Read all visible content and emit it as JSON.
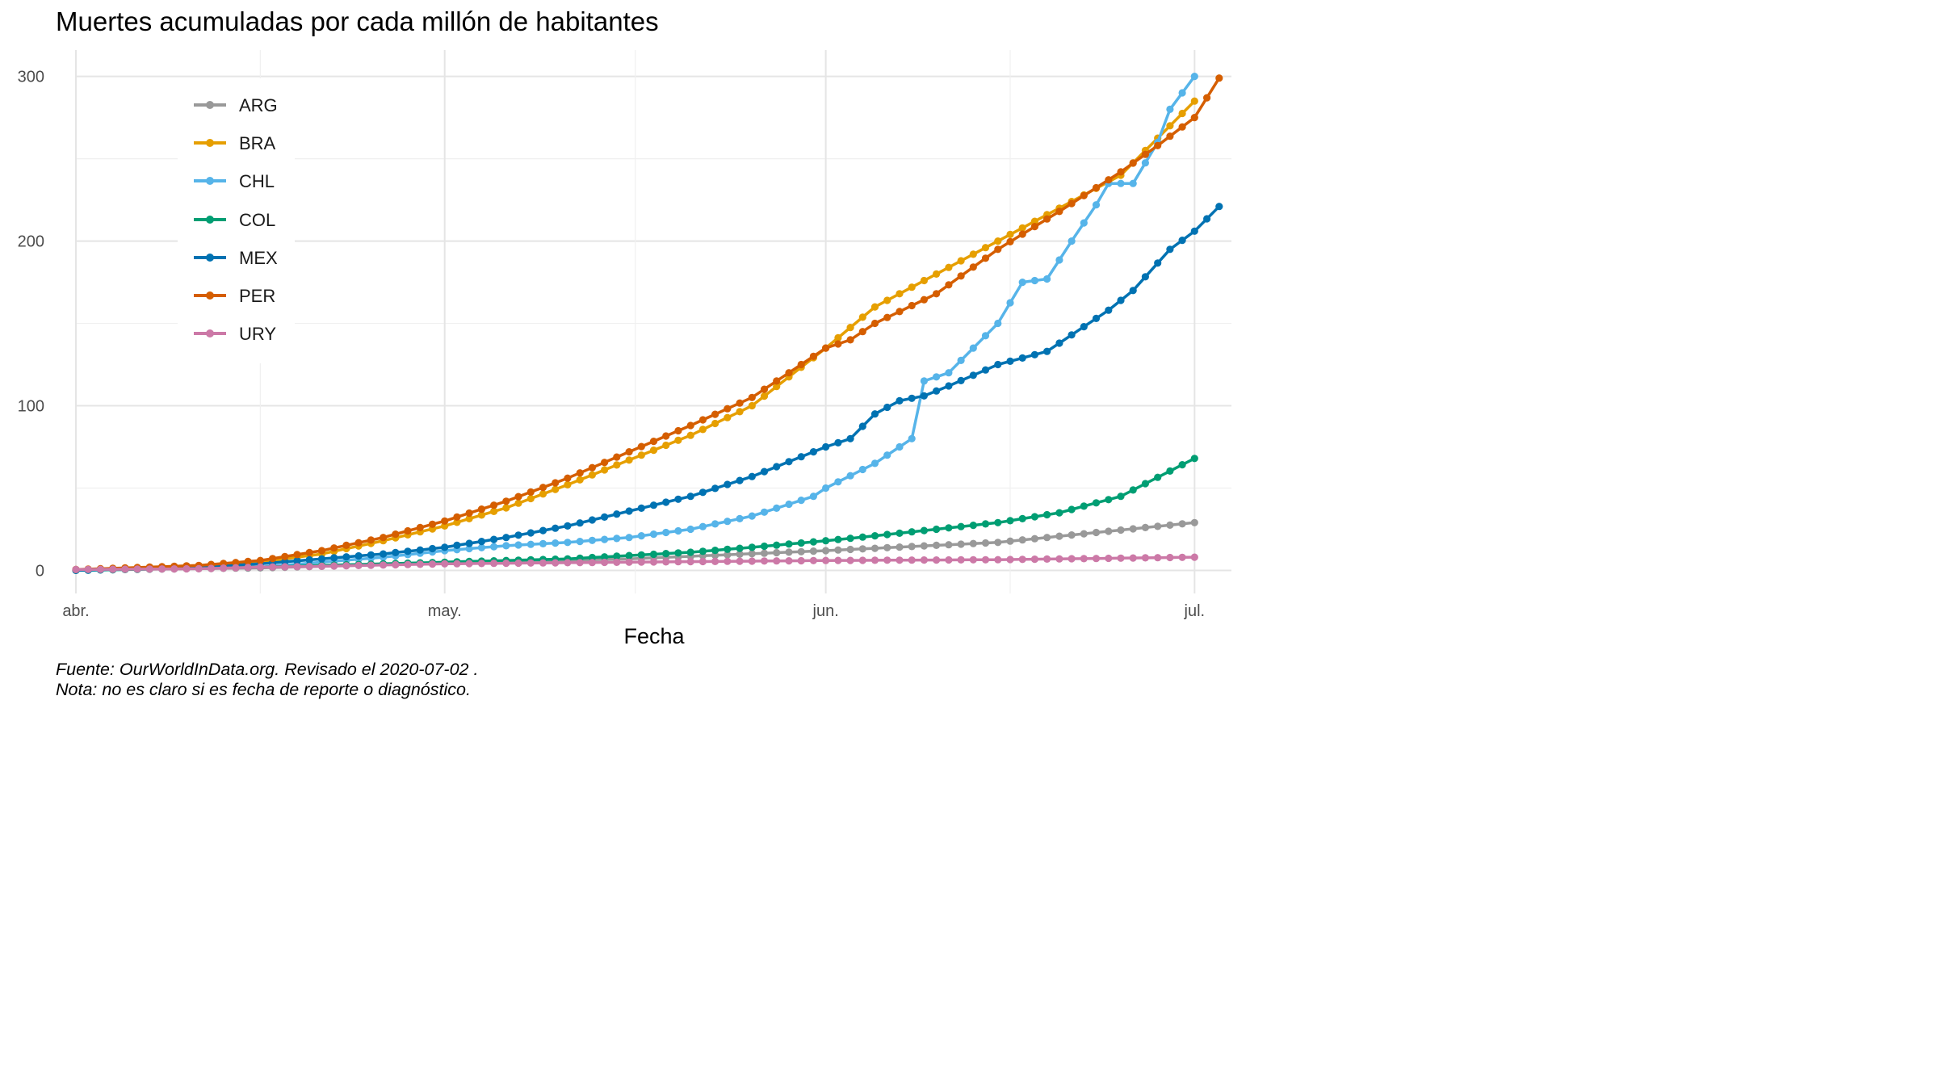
{
  "chart_data": {
    "type": "line",
    "title": "Muertes acumuladas por cada millón de habitantes",
    "xlabel": "Fecha",
    "ylabel": "",
    "x_start": "2020-04-01",
    "x_end": "2020-07-01",
    "xlim": [
      "2020-04-01",
      "2020-07-04"
    ],
    "ylim": [
      -14,
      316
    ],
    "x_ticks": [
      {
        "date": "2020-04-01",
        "label": "abr."
      },
      {
        "date": "2020-05-01",
        "label": "may."
      },
      {
        "date": "2020-06-01",
        "label": "jun."
      },
      {
        "date": "2020-07-01",
        "label": "jul."
      }
    ],
    "y_ticks": [
      0,
      100,
      200,
      300
    ],
    "grid": true,
    "legend_position": "top-left",
    "series": [
      {
        "name": "ARG",
        "color": "#999999",
        "anchors": [
          [
            0,
            0.2
          ],
          [
            15,
            1.5
          ],
          [
            30,
            4.5
          ],
          [
            45,
            7
          ],
          [
            61,
            12
          ],
          [
            75,
            17
          ],
          [
            91,
            29
          ]
        ]
      },
      {
        "name": "BRA",
        "color": "#E69F00",
        "anchors": [
          [
            0,
            0.5
          ],
          [
            10,
            2
          ],
          [
            15,
            5
          ],
          [
            20,
            10
          ],
          [
            25,
            18
          ],
          [
            30,
            27
          ],
          [
            35,
            38
          ],
          [
            40,
            52
          ],
          [
            45,
            67
          ],
          [
            50,
            82
          ],
          [
            55,
            100
          ],
          [
            61,
            135
          ],
          [
            65,
            160
          ],
          [
            70,
            180
          ],
          [
            75,
            200
          ],
          [
            80,
            220
          ],
          [
            85,
            240
          ],
          [
            91,
            285
          ]
        ]
      },
      {
        "name": "CHL",
        "color": "#56B4E9",
        "anchors": [
          [
            0,
            0
          ],
          [
            15,
            2
          ],
          [
            20,
            5
          ],
          [
            25,
            8
          ],
          [
            30,
            12
          ],
          [
            35,
            15
          ],
          [
            40,
            17
          ],
          [
            45,
            20
          ],
          [
            50,
            25
          ],
          [
            55,
            33
          ],
          [
            60,
            45
          ],
          [
            61,
            50
          ],
          [
            65,
            65
          ],
          [
            68,
            80
          ],
          [
            69,
            115
          ],
          [
            71,
            120
          ],
          [
            75,
            150
          ],
          [
            77,
            175
          ],
          [
            79,
            177
          ],
          [
            81,
            200
          ],
          [
            83,
            222
          ],
          [
            84,
            235
          ],
          [
            86,
            235
          ],
          [
            88,
            260
          ],
          [
            89,
            280
          ],
          [
            91,
            300
          ]
        ]
      },
      {
        "name": "COL",
        "color": "#009E73",
        "anchors": [
          [
            0,
            0
          ],
          [
            15,
            2
          ],
          [
            20,
            3
          ],
          [
            25,
            4
          ],
          [
            30,
            5
          ],
          [
            35,
            6
          ],
          [
            40,
            7
          ],
          [
            45,
            9
          ],
          [
            50,
            11
          ],
          [
            55,
            14
          ],
          [
            61,
            18
          ],
          [
            65,
            21
          ],
          [
            70,
            25
          ],
          [
            75,
            29
          ],
          [
            80,
            35
          ],
          [
            85,
            45
          ],
          [
            91,
            68
          ]
        ]
      },
      {
        "name": "MEX",
        "color": "#0072B2",
        "anchors": [
          [
            0,
            0
          ],
          [
            10,
            2
          ],
          [
            15,
            4
          ],
          [
            20,
            7
          ],
          [
            25,
            10
          ],
          [
            30,
            14
          ],
          [
            35,
            20
          ],
          [
            40,
            27
          ],
          [
            45,
            36
          ],
          [
            50,
            45
          ],
          [
            55,
            57
          ],
          [
            60,
            72
          ],
          [
            61,
            75
          ],
          [
            63,
            80
          ],
          [
            65,
            95
          ],
          [
            67,
            103
          ],
          [
            69,
            106
          ],
          [
            71,
            112
          ],
          [
            75,
            125
          ],
          [
            79,
            133
          ],
          [
            81,
            143
          ],
          [
            84,
            158
          ],
          [
            86,
            170
          ],
          [
            89,
            195
          ],
          [
            91,
            206
          ],
          [
            93,
            221
          ]
        ]
      },
      {
        "name": "PER",
        "color": "#D55E00",
        "anchors": [
          [
            0,
            0.5
          ],
          [
            10,
            3
          ],
          [
            15,
            6
          ],
          [
            20,
            12
          ],
          [
            25,
            20
          ],
          [
            30,
            30
          ],
          [
            35,
            42
          ],
          [
            40,
            56
          ],
          [
            45,
            72
          ],
          [
            50,
            88
          ],
          [
            55,
            105
          ],
          [
            61,
            135
          ],
          [
            63,
            140
          ],
          [
            65,
            150
          ],
          [
            70,
            168
          ],
          [
            75,
            195
          ],
          [
            80,
            218
          ],
          [
            85,
            242
          ],
          [
            88,
            258
          ],
          [
            91,
            275
          ],
          [
            93,
            299
          ]
        ]
      },
      {
        "name": "URY",
        "color": "#CC79A7",
        "anchors": [
          [
            0,
            0.5
          ],
          [
            10,
            1
          ],
          [
            15,
            2
          ],
          [
            20,
            2.5
          ],
          [
            30,
            4
          ],
          [
            45,
            5
          ],
          [
            61,
            6
          ],
          [
            75,
            6.5
          ],
          [
            91,
            8
          ]
        ]
      }
    ]
  },
  "caption": {
    "line1": "Fuente: OurWorldInData.org. Revisado el 2020-07-02 .",
    "line2": "Nota: no es claro si es fecha de reporte o diagnóstico."
  }
}
